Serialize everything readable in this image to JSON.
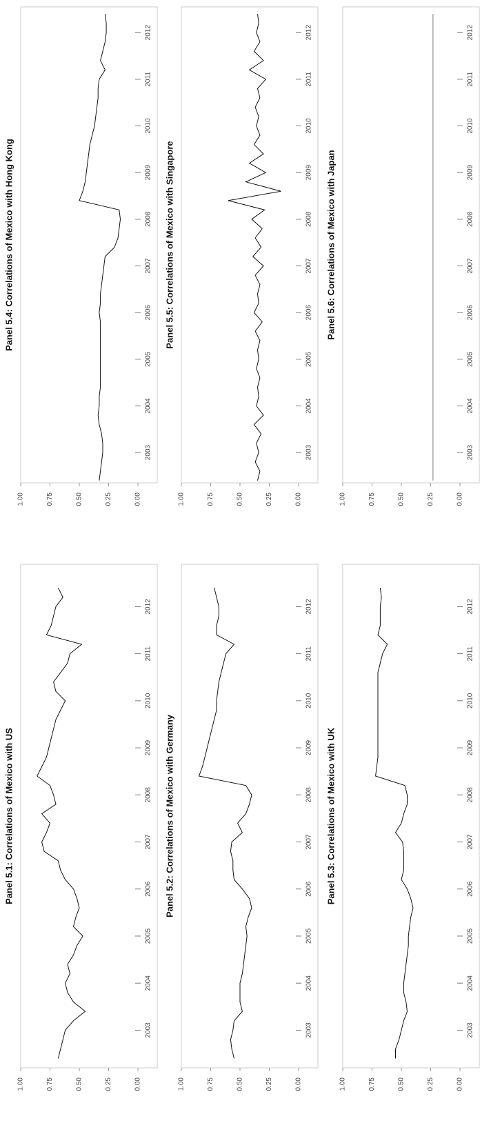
{
  "chart_data": [
    {
      "type": "line",
      "title": "Panel 5.1: Correlations of Mexico with US",
      "color": "#111111",
      "x": [
        2002.4,
        2002.6,
        2002.8,
        2003,
        2003.2,
        2003.4,
        2003.6,
        2003.8,
        2004,
        2004.2,
        2004.4,
        2004.6,
        2004.8,
        2005,
        2005.2,
        2005.4,
        2005.6,
        2005.8,
        2006,
        2006.2,
        2006.4,
        2006.6,
        2006.8,
        2007,
        2007.2,
        2007.4,
        2007.6,
        2007.8,
        2008,
        2008.2,
        2008.4,
        2008.6,
        2008.8,
        2009,
        2009.2,
        2009.4,
        2009.6,
        2009.8,
        2010,
        2010.2,
        2010.4,
        2010.6,
        2010.8,
        2011,
        2011.2,
        2011.4,
        2011.6,
        2011.8,
        2012,
        2012.2,
        2012.4
      ],
      "values": [
        0.68,
        0.66,
        0.64,
        0.62,
        0.55,
        0.45,
        0.55,
        0.6,
        0.62,
        0.58,
        0.6,
        0.55,
        0.52,
        0.47,
        0.55,
        0.53,
        0.5,
        0.52,
        0.55,
        0.62,
        0.66,
        0.68,
        0.8,
        0.82,
        0.78,
        0.75,
        0.82,
        0.7,
        0.72,
        0.75,
        0.86,
        0.82,
        0.78,
        0.76,
        0.74,
        0.72,
        0.7,
        0.66,
        0.62,
        0.7,
        0.72,
        0.66,
        0.6,
        0.58,
        0.48,
        0.78,
        0.74,
        0.72,
        0.7,
        0.64,
        0.68
      ],
      "xlim": [
        2002.2,
        2012.9
      ],
      "xticks": [
        2003,
        2004,
        2005,
        2006,
        2007,
        2008,
        2009,
        2010,
        2011,
        2012
      ],
      "ylim": [
        0,
        1
      ],
      "yticks": [
        {
          "value": 0,
          "label": "0.00"
        },
        {
          "value": 0.25,
          "label": "0.25"
        },
        {
          "value": 0.5,
          "label": "0.50"
        },
        {
          "value": 0.75,
          "label": "0.75"
        },
        {
          "value": 1,
          "label": "1.00"
        }
      ]
    },
    {
      "type": "line",
      "title": "Panel 5.2: Correlations of Mexico with Germany",
      "color": "#111111",
      "x": [
        2002.4,
        2002.6,
        2002.8,
        2003,
        2003.2,
        2003.4,
        2003.6,
        2003.8,
        2004,
        2004.2,
        2004.4,
        2004.6,
        2004.8,
        2005,
        2005.2,
        2005.4,
        2005.6,
        2005.8,
        2006,
        2006.2,
        2006.4,
        2006.6,
        2006.8,
        2007,
        2007.2,
        2007.4,
        2007.6,
        2007.8,
        2008,
        2008.2,
        2008.4,
        2008.6,
        2008.8,
        2009,
        2009.2,
        2009.4,
        2009.6,
        2009.8,
        2010,
        2010.2,
        2010.4,
        2010.6,
        2010.8,
        2011,
        2011.2,
        2011.4,
        2011.6,
        2011.8,
        2012,
        2012.2,
        2012.4
      ],
      "values": [
        0.55,
        0.57,
        0.58,
        0.56,
        0.55,
        0.48,
        0.5,
        0.5,
        0.5,
        0.48,
        0.47,
        0.46,
        0.45,
        0.44,
        0.45,
        0.43,
        0.4,
        0.42,
        0.48,
        0.55,
        0.56,
        0.56,
        0.58,
        0.57,
        0.48,
        0.52,
        0.45,
        0.42,
        0.4,
        0.45,
        0.85,
        0.82,
        0.8,
        0.78,
        0.76,
        0.74,
        0.72,
        0.7,
        0.7,
        0.69,
        0.68,
        0.66,
        0.64,
        0.62,
        0.55,
        0.7,
        0.7,
        0.68,
        0.68,
        0.7,
        0.72
      ],
      "xlim": [
        2002.2,
        2012.9
      ],
      "xticks": [
        2003,
        2004,
        2005,
        2006,
        2007,
        2008,
        2009,
        2010,
        2011,
        2012
      ],
      "ylim": [
        0,
        1
      ],
      "yticks": [
        {
          "value": 0,
          "label": "0.00"
        },
        {
          "value": 0.25,
          "label": "0.25"
        },
        {
          "value": 0.5,
          "label": "0.50"
        },
        {
          "value": 0.75,
          "label": "0.75"
        },
        {
          "value": 1,
          "label": "1.00"
        }
      ]
    },
    {
      "type": "line",
      "title": "Panel 5.3: Correlations of Mexico with UK",
      "color": "#111111",
      "x": [
        2002.4,
        2002.6,
        2002.8,
        2003,
        2003.2,
        2003.4,
        2003.6,
        2003.8,
        2004,
        2004.2,
        2004.4,
        2004.6,
        2004.8,
        2005,
        2005.2,
        2005.4,
        2005.6,
        2005.8,
        2006,
        2006.2,
        2006.4,
        2006.6,
        2006.8,
        2007,
        2007.2,
        2007.4,
        2007.6,
        2007.8,
        2008,
        2008.2,
        2008.4,
        2008.6,
        2008.8,
        2009,
        2009.2,
        2009.4,
        2009.6,
        2009.8,
        2010,
        2010.2,
        2010.4,
        2010.6,
        2010.8,
        2011,
        2011.2,
        2011.4,
        2011.6,
        2011.8,
        2012,
        2012.2,
        2012.4
      ],
      "values": [
        0.55,
        0.55,
        0.52,
        0.5,
        0.48,
        0.45,
        0.46,
        0.48,
        0.48,
        0.47,
        0.46,
        0.45,
        0.44,
        0.44,
        0.43,
        0.42,
        0.4,
        0.42,
        0.45,
        0.5,
        0.48,
        0.48,
        0.48,
        0.49,
        0.55,
        0.5,
        0.48,
        0.45,
        0.45,
        0.47,
        0.72,
        0.71,
        0.7,
        0.7,
        0.7,
        0.7,
        0.7,
        0.7,
        0.7,
        0.7,
        0.7,
        0.7,
        0.68,
        0.66,
        0.62,
        0.7,
        0.68,
        0.68,
        0.68,
        0.67,
        0.68
      ],
      "xlim": [
        2002.2,
        2012.9
      ],
      "xticks": [
        2003,
        2004,
        2005,
        2006,
        2007,
        2008,
        2009,
        2010,
        2011,
        2012
      ],
      "ylim": [
        0,
        1
      ],
      "yticks": [
        {
          "value": 0,
          "label": "0.00"
        },
        {
          "value": 0.25,
          "label": "0.25"
        },
        {
          "value": 0.5,
          "label": "0.50"
        },
        {
          "value": 0.75,
          "label": "0.75"
        },
        {
          "value": 1,
          "label": "1.00"
        }
      ]
    },
    {
      "type": "line",
      "title": "Panel 5.4: Correlations of Mexico with Hong Kong",
      "color": "#111111",
      "x": [
        2002.4,
        2002.6,
        2002.8,
        2003,
        2003.2,
        2003.4,
        2003.6,
        2003.8,
        2004,
        2004.2,
        2004.4,
        2004.6,
        2004.8,
        2005,
        2005.2,
        2005.4,
        2005.6,
        2005.8,
        2006,
        2006.2,
        2006.4,
        2006.6,
        2006.8,
        2007,
        2007.2,
        2007.4,
        2007.6,
        2007.8,
        2008,
        2008.2,
        2008.4,
        2008.6,
        2008.8,
        2009,
        2009.2,
        2009.4,
        2009.6,
        2009.8,
        2010,
        2010.2,
        2010.4,
        2010.6,
        2010.8,
        2011,
        2011.2,
        2011.4,
        2011.6,
        2011.8,
        2012,
        2012.2,
        2012.4
      ],
      "values": [
        0.33,
        0.32,
        0.31,
        0.3,
        0.3,
        0.31,
        0.33,
        0.34,
        0.33,
        0.33,
        0.32,
        0.32,
        0.32,
        0.32,
        0.32,
        0.32,
        0.32,
        0.32,
        0.33,
        0.32,
        0.32,
        0.31,
        0.3,
        0.29,
        0.28,
        0.2,
        0.17,
        0.16,
        0.15,
        0.16,
        0.5,
        0.47,
        0.45,
        0.44,
        0.43,
        0.42,
        0.41,
        0.39,
        0.37,
        0.36,
        0.35,
        0.34,
        0.34,
        0.33,
        0.28,
        0.32,
        0.3,
        0.28,
        0.27,
        0.27,
        0.28
      ],
      "xlim": [
        2002.35,
        2012.55
      ],
      "xticks": [
        2003,
        2004,
        2005,
        2006,
        2007,
        2008,
        2009,
        2010,
        2011,
        2012
      ],
      "ylim": [
        0,
        1
      ],
      "yticks": [
        {
          "value": 0,
          "label": "0.00"
        },
        {
          "value": 0.25,
          "label": "0.25"
        },
        {
          "value": 0.5,
          "label": "0.50"
        },
        {
          "value": 0.75,
          "label": "0.75"
        },
        {
          "value": 1,
          "label": "1.00"
        }
      ]
    },
    {
      "type": "line",
      "title": "Panel 5.5: Correlations of Mexico with Singapore",
      "color": "#111111",
      "x": [
        2002.4,
        2002.6,
        2002.8,
        2003,
        2003.2,
        2003.4,
        2003.6,
        2003.8,
        2004,
        2004.2,
        2004.4,
        2004.6,
        2004.8,
        2005,
        2005.2,
        2005.4,
        2005.6,
        2005.8,
        2006,
        2006.2,
        2006.4,
        2006.6,
        2006.8,
        2007,
        2007.2,
        2007.4,
        2007.6,
        2007.8,
        2008,
        2008.2,
        2008.4,
        2008.6,
        2008.8,
        2009,
        2009.2,
        2009.4,
        2009.6,
        2009.8,
        2010,
        2010.2,
        2010.4,
        2010.6,
        2010.8,
        2011,
        2011.2,
        2011.4,
        2011.6,
        2011.8,
        2012,
        2012.2,
        2012.4
      ],
      "values": [
        0.35,
        0.33,
        0.37,
        0.34,
        0.36,
        0.32,
        0.38,
        0.3,
        0.36,
        0.34,
        0.35,
        0.33,
        0.36,
        0.34,
        0.35,
        0.33,
        0.37,
        0.31,
        0.38,
        0.34,
        0.35,
        0.33,
        0.37,
        0.3,
        0.39,
        0.32,
        0.37,
        0.31,
        0.4,
        0.29,
        0.6,
        0.15,
        0.45,
        0.28,
        0.42,
        0.3,
        0.38,
        0.33,
        0.36,
        0.34,
        0.37,
        0.33,
        0.35,
        0.28,
        0.42,
        0.3,
        0.38,
        0.33,
        0.36,
        0.34,
        0.35
      ],
      "xlim": [
        2002.35,
        2012.55
      ],
      "xticks": [
        2003,
        2004,
        2005,
        2006,
        2007,
        2008,
        2009,
        2010,
        2011,
        2012
      ],
      "ylim": [
        0,
        1
      ],
      "yticks": [
        {
          "value": 0,
          "label": "0.00"
        },
        {
          "value": 0.25,
          "label": "0.25"
        },
        {
          "value": 0.5,
          "label": "0.50"
        },
        {
          "value": 0.75,
          "label": "0.75"
        },
        {
          "value": 1,
          "label": "1.00"
        }
      ]
    },
    {
      "type": "line",
      "title": "Panel 5.6: Correlations of Mexico with Japan",
      "color": "#777777",
      "x": [
        2002.4,
        2002.6,
        2002.8,
        2003,
        2003.2,
        2003.4,
        2003.6,
        2003.8,
        2004,
        2004.2,
        2004.4,
        2004.6,
        2004.8,
        2005,
        2005.2,
        2005.4,
        2005.6,
        2005.8,
        2006,
        2006.2,
        2006.4,
        2006.6,
        2006.8,
        2007,
        2007.2,
        2007.4,
        2007.6,
        2007.8,
        2008,
        2008.2,
        2008.4,
        2008.6,
        2008.8,
        2009,
        2009.2,
        2009.4,
        2009.6,
        2009.8,
        2010,
        2010.2,
        2010.4,
        2010.6,
        2010.8,
        2011,
        2011.2,
        2011.4,
        2011.6,
        2011.8,
        2012,
        2012.2,
        2012.4
      ],
      "values": [
        0.23,
        0.23,
        0.23,
        0.23,
        0.23,
        0.23,
        0.23,
        0.23,
        0.23,
        0.23,
        0.23,
        0.23,
        0.23,
        0.23,
        0.23,
        0.23,
        0.23,
        0.23,
        0.23,
        0.23,
        0.23,
        0.23,
        0.23,
        0.23,
        0.23,
        0.23,
        0.23,
        0.23,
        0.23,
        0.23,
        0.23,
        0.23,
        0.23,
        0.23,
        0.23,
        0.23,
        0.23,
        0.23,
        0.23,
        0.23,
        0.23,
        0.23,
        0.23,
        0.23,
        0.23,
        0.23,
        0.23,
        0.23,
        0.23,
        0.23,
        0.23
      ],
      "xlim": [
        2002.35,
        2012.55
      ],
      "xticks": [
        2003,
        2004,
        2005,
        2006,
        2007,
        2008,
        2009,
        2010,
        2011,
        2012
      ],
      "ylim": [
        0,
        1
      ],
      "yticks": [
        {
          "value": 0,
          "label": "0.00"
        },
        {
          "value": 0.25,
          "label": "0.25"
        },
        {
          "value": 0.5,
          "label": "0.50"
        },
        {
          "value": 0.75,
          "label": "0.75"
        },
        {
          "value": 1,
          "label": "1.00"
        }
      ]
    }
  ]
}
